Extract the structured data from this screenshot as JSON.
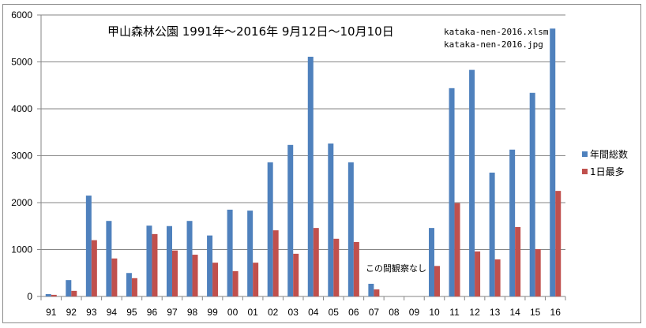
{
  "chart_data": {
    "type": "bar",
    "title": "甲山森林公園 1991年～2016年  9月12日～10月10日",
    "file_labels": [
      "kataka-nen-2016.xlsm",
      "kataka-nen-2016.jpg"
    ],
    "annotation": "この間観察なし",
    "xlabel": "",
    "ylabel": "",
    "ylim": [
      0,
      6000
    ],
    "yticks": [
      0,
      1000,
      2000,
      3000,
      4000,
      5000,
      6000
    ],
    "grid": true,
    "legend_position": "right",
    "categories": [
      "91",
      "92",
      "93",
      "94",
      "95",
      "96",
      "97",
      "98",
      "99",
      "00",
      "01",
      "02",
      "03",
      "04",
      "05",
      "06",
      "07",
      "08",
      "09",
      "10",
      "11",
      "12",
      "13",
      "14",
      "15",
      "16"
    ],
    "series": [
      {
        "name": "年間総数",
        "color": "#4f81bd",
        "values": [
          50,
          350,
          2150,
          1610,
          500,
          1510,
          1500,
          1610,
          1300,
          1850,
          1830,
          2860,
          3230,
          5110,
          3260,
          2860,
          270,
          0,
          0,
          1460,
          4440,
          4830,
          2640,
          3130,
          4340,
          5710
        ]
      },
      {
        "name": "1日最多",
        "color": "#c0504d",
        "values": [
          35,
          120,
          1200,
          810,
          390,
          1330,
          980,
          890,
          720,
          540,
          720,
          1410,
          910,
          1460,
          1230,
          1160,
          150,
          0,
          0,
          650,
          1990,
          960,
          790,
          1480,
          1010,
          2250
        ]
      }
    ]
  }
}
